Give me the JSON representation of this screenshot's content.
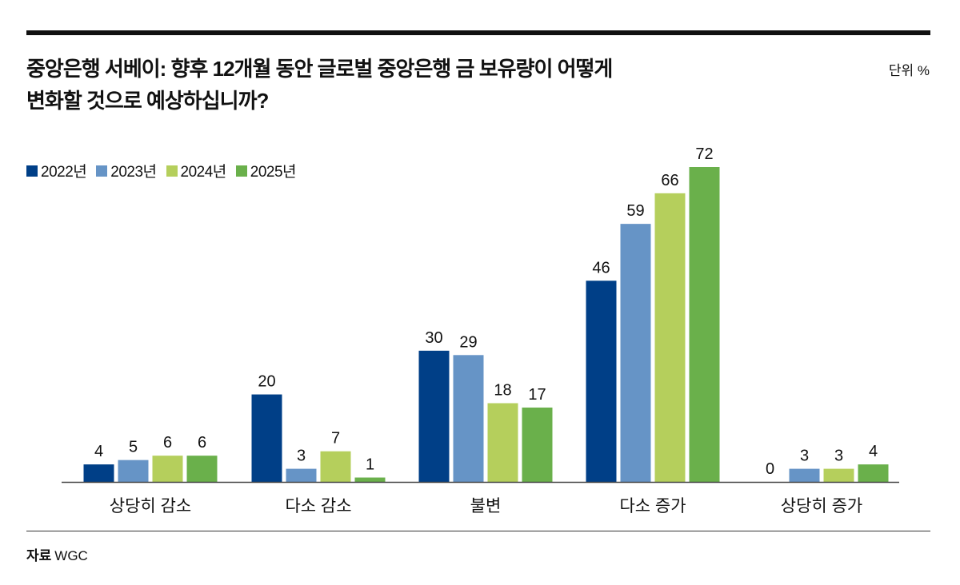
{
  "title_line1": "중앙은행 서베이: 향후 12개월 동안 글로벌 중앙은행 금 보유량이 어떻게",
  "title_line2": "변화할 것으로 예상하십니까?",
  "unit": "단위 %",
  "source_label": "자료",
  "source_value": "WGC",
  "chart_data": {
    "type": "bar",
    "title": "중앙은행 서베이: 향후 12개월 동안 글로벌 중앙은행 금 보유량이 어떻게 변화할 것으로 예상하십니까?",
    "xlabel": "",
    "ylabel": "",
    "ylim": [
      0,
      72
    ],
    "grid": false,
    "legend_position": "top-left",
    "categories": [
      "상당히 감소",
      "다소 감소",
      "불변",
      "다소 증가",
      "상당히 증가"
    ],
    "series": [
      {
        "name": "2022년",
        "color": "#003f87",
        "values": [
          4,
          20,
          30,
          46,
          0
        ]
      },
      {
        "name": "2023년",
        "color": "#6694c6",
        "values": [
          5,
          3,
          29,
          59,
          3
        ]
      },
      {
        "name": "2024년",
        "color": "#b5cf5c",
        "values": [
          6,
          7,
          18,
          66,
          3
        ]
      },
      {
        "name": "2025년",
        "color": "#6ab04b",
        "values": [
          6,
          1,
          17,
          72,
          4
        ]
      }
    ]
  }
}
